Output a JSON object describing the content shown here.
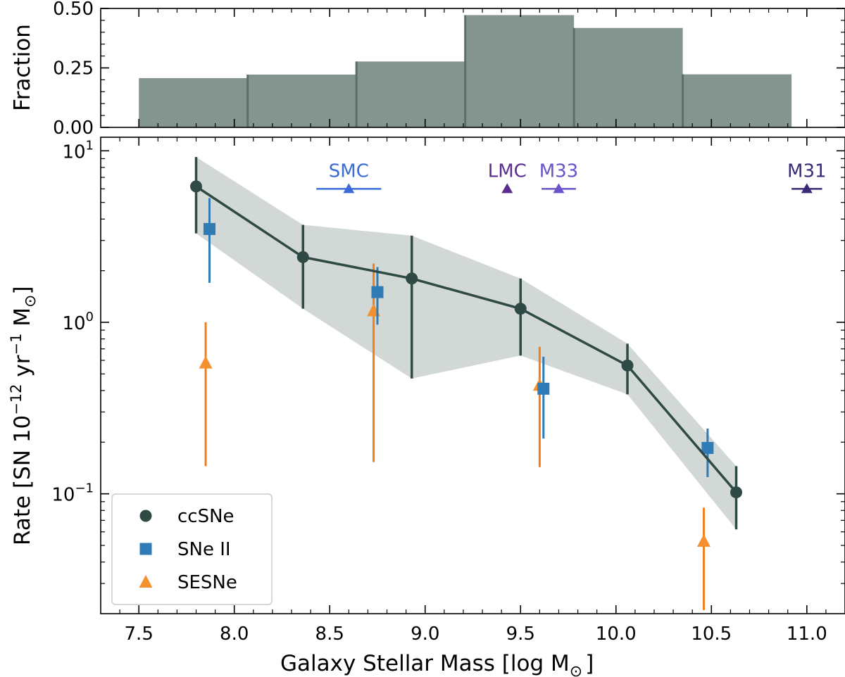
{
  "chart_data": [
    {
      "type": "bar",
      "panel": "top",
      "ylabel": "Fraction",
      "ylim": [
        0,
        0.5
      ],
      "yticks": [
        0.0,
        0.25,
        0.5
      ],
      "ytick_labels": [
        "0.00",
        "0.25",
        "0.50"
      ],
      "bin_edges": [
        7.5,
        8.07,
        8.64,
        9.21,
        9.78,
        10.35,
        10.92
      ],
      "values": [
        0.207,
        0.222,
        0.277,
        0.472,
        0.418,
        0.223
      ],
      "color": "#84948f"
    },
    {
      "type": "line",
      "panel": "bottom",
      "xlabel": "Galaxy Stellar Mass [log M",
      "xlabel_sub": "⊙",
      "xlabel_close": "]",
      "ylabel": "Rate [SN 10",
      "ylabel_exp1": "−12",
      "ylabel_mid": " yr",
      "ylabel_exp2": "−1",
      "ylabel_end": " M",
      "ylabel_sub": "⊙",
      "ylabel_close2": "]",
      "xlim": [
        7.3,
        11.2
      ],
      "ylim": [
        0.02,
        12
      ],
      "yscale": "log",
      "xticks": [
        7.5,
        8.0,
        8.5,
        9.0,
        9.5,
        10.0,
        10.5,
        11.0
      ],
      "xtick_labels": [
        "7.5",
        "8.0",
        "8.5",
        "9.0",
        "9.5",
        "10.0",
        "10.5",
        "11.0"
      ],
      "ytick_major": [
        0.1,
        1,
        10
      ],
      "ytick_labels": [
        {
          "base": "10",
          "exp": "−1"
        },
        {
          "base": "10",
          "exp": "0"
        },
        {
          "base": "10",
          "exp": "1"
        }
      ],
      "band": {
        "x": [
          7.8,
          8.36,
          8.93,
          9.5,
          10.06,
          10.63
        ],
        "lower": [
          3.3,
          1.2,
          0.47,
          0.64,
          0.38,
          0.062
        ],
        "upper": [
          9.2,
          3.7,
          3.2,
          1.8,
          0.75,
          0.145
        ],
        "color": "#d2d8d6"
      },
      "series": [
        {
          "name": "ccSNe",
          "marker": "circle",
          "color": "#2f4a45",
          "connected": true,
          "x": [
            7.8,
            8.36,
            8.93,
            9.5,
            10.06,
            10.63
          ],
          "y": [
            6.2,
            2.4,
            1.8,
            1.2,
            0.56,
            0.102
          ],
          "ylo": [
            3.3,
            1.2,
            0.47,
            0.64,
            0.38,
            0.062
          ],
          "yhi": [
            9.2,
            3.7,
            3.2,
            1.8,
            0.75,
            0.145
          ]
        },
        {
          "name": "SNe II",
          "marker": "square",
          "color": "#2f7bb6",
          "connected": false,
          "x": [
            7.87,
            8.75,
            9.62,
            10.48
          ],
          "y": [
            3.5,
            1.5,
            0.41,
            0.185
          ],
          "ylo": [
            1.7,
            0.97,
            0.21,
            0.125
          ],
          "yhi": [
            5.3,
            2.1,
            0.63,
            0.24
          ]
        },
        {
          "name": "SESNe",
          "marker": "triangle",
          "color": "#f4902e",
          "errcolor": "#f07f1a",
          "connected": false,
          "x": [
            7.85,
            8.73,
            9.6,
            10.46
          ],
          "y": [
            0.58,
            1.17,
            0.43,
            0.053
          ],
          "ylo": [
            0.145,
            0.153,
            0.143,
            0.021
          ],
          "yhi": [
            1.0,
            2.2,
            0.72,
            0.083
          ]
        }
      ],
      "legend_position": "lower-left",
      "annotations": [
        {
          "label": "SMC",
          "x": 8.6,
          "xerr": [
            8.43,
            8.77
          ],
          "y": 6.0,
          "color": "#3a6bd6"
        },
        {
          "label": "LMC",
          "x": 9.43,
          "xerr": null,
          "y": 6.0,
          "color": "#5a2d8f"
        },
        {
          "label": "M33",
          "x": 9.7,
          "xerr": [
            9.61,
            9.79
          ],
          "y": 6.0,
          "color": "#6a52c8"
        },
        {
          "label": "M31",
          "x": 11.0,
          "xerr": [
            10.92,
            11.08
          ],
          "y": 6.0,
          "color": "#3b2a78"
        }
      ]
    }
  ]
}
